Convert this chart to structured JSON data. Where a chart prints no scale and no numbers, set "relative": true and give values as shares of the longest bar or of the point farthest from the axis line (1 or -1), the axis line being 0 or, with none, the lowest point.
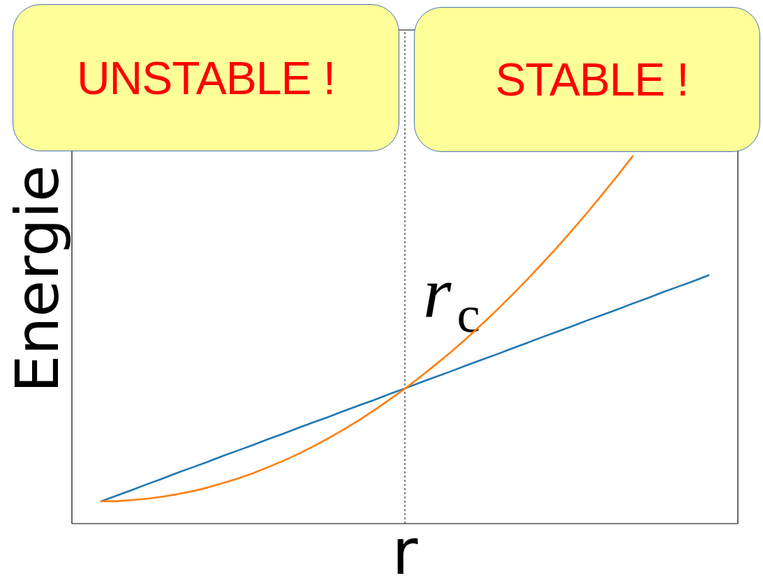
{
  "chart_data": {
    "type": "line",
    "xlabel": "r",
    "ylabel": "Energie",
    "relative": true,
    "marker": "none",
    "line_style": "solid",
    "categories": [
      null,
      null,
      null,
      null,
      null,
      null,
      null,
      null,
      null,
      null,
      null,
      null,
      null,
      null,
      null,
      null,
      null,
      null,
      null,
      null,
      null,
      null,
      null,
      null,
      null,
      null,
      null,
      null,
      null,
      null,
      null,
      null,
      null,
      null,
      null,
      null,
      null,
      null,
      null,
      null,
      null
    ],
    "series": [
      {
        "color": "#1f77b4",
        "values": [
          0.061,
          0.076,
          0.091,
          0.107,
          0.122,
          0.138,
          0.153,
          0.168,
          0.184,
          0.199,
          0.214,
          0.23,
          0.245,
          0.261,
          0.276,
          0.291,
          0.307,
          0.322,
          0.337,
          0.353,
          0.368,
          0.384,
          0.399,
          0.414,
          0.43,
          0.445,
          0.46,
          0.476,
          0.491,
          0.507,
          0.522,
          0.537,
          0.553,
          0.568,
          0.583,
          0.599,
          0.614,
          0.63,
          0.645,
          0.66,
          0.676
        ]
      },
      {
        "color": "#ff7f0e",
        "values": [
          0.061,
          0.061,
          0.064,
          0.068,
          0.073,
          0.08,
          0.088,
          0.098,
          0.11,
          0.123,
          0.137,
          0.154,
          0.171,
          0.19,
          0.211,
          0.233,
          0.257,
          0.282,
          0.309,
          0.338,
          0.367,
          0.399,
          0.432,
          0.466,
          0.502,
          0.54,
          0.579,
          0.62,
          0.662,
          0.706,
          0.751,
          0.798,
          0.846,
          0.896,
          0.947,
          1.0,
          null,
          null,
          null,
          null,
          null
        ]
      }
    ],
    "annotations": [
      "UNSTABLE !",
      "STABLE !",
      "r$_{c}$"
    ]
  }
}
